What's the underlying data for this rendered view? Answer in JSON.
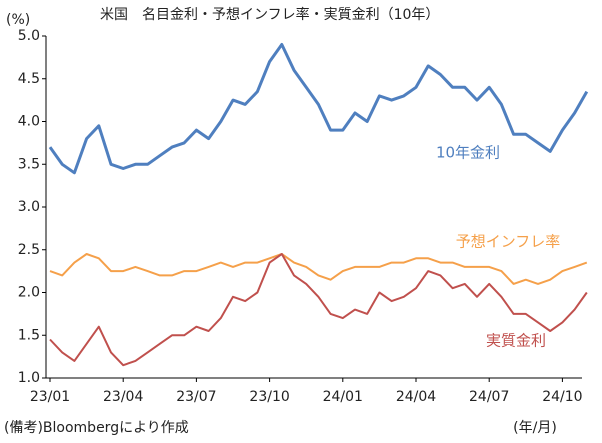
{
  "chart_data": {
    "type": "line",
    "title": "米国　名目金利・予想インフレ率・実質金利（10年）",
    "y_unit": "(%)",
    "x_unit": "(年/月)",
    "note": "(備考)Bloombergにより作成",
    "categories": [
      "23/01",
      null,
      null,
      null,
      null,
      null,
      "23/04",
      null,
      null,
      null,
      null,
      null,
      "23/07",
      null,
      null,
      null,
      null,
      null,
      "23/10",
      null,
      null,
      null,
      null,
      null,
      "24/01",
      null,
      null,
      null,
      null,
      null,
      "24/04",
      null,
      null,
      null,
      null,
      null,
      "24/07",
      null,
      null,
      null,
      null,
      null,
      "24/10",
      null,
      null
    ],
    "series": [
      {
        "name": "10年金利",
        "color": "#4f7fbf",
        "values": [
          3.7,
          3.5,
          3.4,
          3.8,
          3.95,
          3.5,
          3.45,
          3.5,
          3.5,
          3.6,
          3.7,
          3.75,
          3.9,
          3.8,
          4.0,
          4.25,
          4.2,
          4.35,
          4.7,
          4.9,
          4.6,
          4.4,
          4.2,
          3.9,
          3.9,
          4.1,
          4.0,
          4.3,
          4.25,
          4.3,
          4.4,
          4.65,
          4.55,
          4.4,
          4.4,
          4.25,
          4.4,
          4.2,
          3.85,
          3.85,
          3.75,
          3.65,
          3.9,
          4.1,
          4.35
        ]
      },
      {
        "name": "予想インフレ率",
        "color": "#f5a04a",
        "values": [
          2.25,
          2.2,
          2.35,
          2.45,
          2.4,
          2.25,
          2.25,
          2.3,
          2.25,
          2.2,
          2.2,
          2.25,
          2.25,
          2.3,
          2.35,
          2.3,
          2.35,
          2.35,
          2.4,
          2.45,
          2.35,
          2.3,
          2.2,
          2.15,
          2.25,
          2.3,
          2.3,
          2.3,
          2.35,
          2.35,
          2.4,
          2.4,
          2.35,
          2.35,
          2.3,
          2.3,
          2.3,
          2.25,
          2.1,
          2.15,
          2.1,
          2.15,
          2.25,
          2.3,
          2.35
        ]
      },
      {
        "name": "実質金利",
        "color": "#c0504d",
        "values": [
          1.45,
          1.3,
          1.2,
          1.4,
          1.6,
          1.3,
          1.15,
          1.2,
          1.3,
          1.4,
          1.5,
          1.5,
          1.6,
          1.55,
          1.7,
          1.95,
          1.9,
          2.0,
          2.35,
          2.45,
          2.2,
          2.1,
          1.95,
          1.75,
          1.7,
          1.8,
          1.75,
          2.0,
          1.9,
          1.95,
          2.05,
          2.25,
          2.2,
          2.05,
          2.1,
          1.95,
          2.1,
          1.95,
          1.75,
          1.75,
          1.65,
          1.55,
          1.65,
          1.8,
          2.0
        ]
      }
    ],
    "ylim": [
      1.0,
      5.0
    ],
    "yticks": [
      {
        "value": 1,
        "label": "1.0"
      },
      1.5,
      {
        "value": 2,
        "label": "2.0"
      },
      2.5,
      {
        "value": 3,
        "label": "3.0"
      },
      3.5,
      {
        "value": 4,
        "label": "4.0"
      },
      4.5,
      {
        "value": 5,
        "label": "5.0"
      }
    ],
    "grid": false
  }
}
